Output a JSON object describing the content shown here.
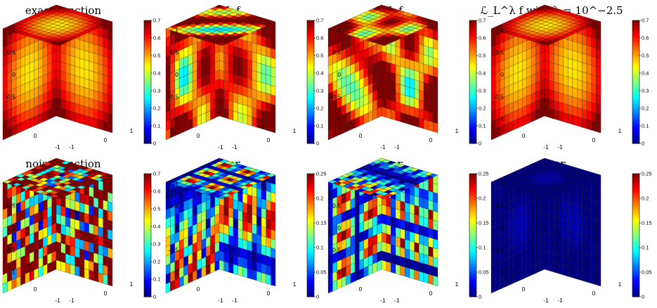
{
  "colormap": "jet",
  "panels": [
    {
      "title": "exact function",
      "kind": "exact",
      "clim": [
        0,
        0.7
      ],
      "cb_ticks": [
        "0",
        "0.1",
        "0.2",
        "0.3",
        "0.4",
        "0.5",
        "0.6",
        "0.7"
      ]
    },
    {
      "title": "𝒯_L f",
      "kind": "tl",
      "clim": [
        0,
        0.7
      ],
      "cb_ticks": [
        "0",
        "0.1",
        "0.2",
        "0.3",
        "0.4",
        "0.5",
        "0.6",
        "0.7"
      ]
    },
    {
      "title": "ℱ_L f",
      "kind": "fl",
      "clim": [
        0,
        0.7
      ],
      "cb_ticks": [
        "0",
        "0.1",
        "0.2",
        "0.3",
        "0.4",
        "0.5",
        "0.6",
        "0.7"
      ]
    },
    {
      "title": "ℒ_L^λ f with λ = 10^−2.5",
      "kind": "lasso",
      "clim": [
        0,
        0.7
      ],
      "cb_ticks": [
        "0",
        "0.1",
        "0.2",
        "0.3",
        "0.4",
        "0.5",
        "0.6",
        "0.7"
      ]
    },
    {
      "title": "noisy function",
      "kind": "noisy",
      "clim": [
        0,
        0.7
      ],
      "cb_ticks": [
        "0",
        "0.1",
        "0.2",
        "0.3",
        "0.4",
        "0.5",
        "0.6",
        "0.7"
      ]
    },
    {
      "title": "error",
      "kind": "err_tl",
      "clim": [
        0,
        0.25
      ],
      "cb_ticks": [
        "0",
        "0.05",
        "0.1",
        "0.15",
        "0.2",
        "0.25"
      ]
    },
    {
      "title": "error",
      "kind": "err_fl",
      "clim": [
        0,
        0.25
      ],
      "cb_ticks": [
        "0",
        "0.05",
        "0.1",
        "0.15",
        "0.2",
        "0.25"
      ]
    },
    {
      "title": "error",
      "kind": "err_lasso",
      "clim": [
        0,
        0.25
      ],
      "cb_ticks": [
        "0",
        "0.05",
        "0.1",
        "0.15",
        "0.2",
        "0.25"
      ]
    }
  ],
  "axes": {
    "z_ticks": [
      "1",
      "0.5",
      "0",
      "-0.5",
      "-1"
    ],
    "x_ticks": [
      "-1",
      "0",
      "1"
    ],
    "y_ticks": [
      "-1",
      "0",
      "1"
    ]
  },
  "chart_data": [
    {
      "type": "heatmap",
      "title": "exact function",
      "colorbar_range": [
        0,
        0.7
      ],
      "zlim": [
        -1,
        1
      ],
      "xlim": [
        -1,
        1
      ],
      "ylim": [
        -1,
        1
      ]
    },
    {
      "type": "heatmap",
      "title": "𝒯_L f",
      "colorbar_range": [
        0,
        0.7
      ],
      "zlim": [
        -1,
        1
      ],
      "xlim": [
        -1,
        1
      ],
      "ylim": [
        -1,
        1
      ]
    },
    {
      "type": "heatmap",
      "title": "ℱ_L f",
      "colorbar_range": [
        0,
        0.7
      ],
      "zlim": [
        -1,
        1
      ],
      "xlim": [
        -1,
        1
      ],
      "ylim": [
        -1,
        1
      ]
    },
    {
      "type": "heatmap",
      "title": "ℒ_L^λ f with λ = 10^−2.5",
      "colorbar_range": [
        0,
        0.7
      ],
      "zlim": [
        -1,
        1
      ],
      "xlim": [
        -1,
        1
      ],
      "ylim": [
        -1,
        1
      ]
    },
    {
      "type": "heatmap",
      "title": "noisy function",
      "colorbar_range": [
        0,
        0.7
      ],
      "zlim": [
        -1,
        1
      ],
      "xlim": [
        -1,
        1
      ],
      "ylim": [
        -1,
        1
      ]
    },
    {
      "type": "heatmap",
      "title": "error",
      "colorbar_range": [
        0,
        0.25
      ],
      "zlim": [
        -1,
        1
      ],
      "xlim": [
        -1,
        1
      ],
      "ylim": [
        -1,
        1
      ]
    },
    {
      "type": "heatmap",
      "title": "error",
      "colorbar_range": [
        0,
        0.25
      ],
      "zlim": [
        -1,
        1
      ],
      "xlim": [
        -1,
        1
      ],
      "ylim": [
        -1,
        1
      ]
    },
    {
      "type": "heatmap",
      "title": "error",
      "colorbar_range": [
        0,
        0.25
      ],
      "zlim": [
        -1,
        1
      ],
      "xlim": [
        -1,
        1
      ],
      "ylim": [
        -1,
        1
      ]
    }
  ]
}
